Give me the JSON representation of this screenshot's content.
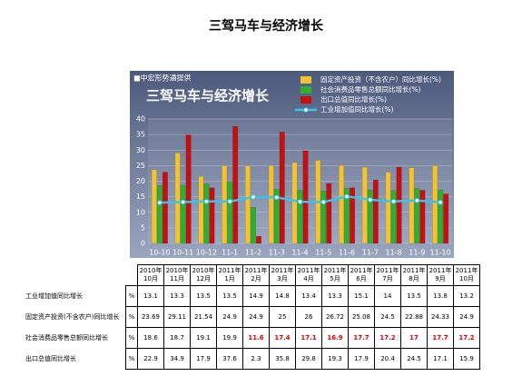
{
  "header": {
    "title": "三驾马车与经济增长"
  },
  "chart_data": {
    "type": "bar",
    "source": "■中宏形势通提供",
    "title": "三驾马车与经济增长",
    "categories": [
      "10-10",
      "10-11",
      "10-12",
      "11-1",
      "11-2",
      "11-3",
      "11-4",
      "11-5",
      "11-6",
      "11-7",
      "11-8",
      "11-9",
      "11-10"
    ],
    "series": [
      {
        "name": "固定资产投资（不含农户）同比增长(%)",
        "color": "#f2c230",
        "type": "bar",
        "values": [
          23.69,
          29.11,
          21.54,
          24.9,
          24.9,
          25,
          26,
          26.72,
          25.08,
          24.5,
          22.88,
          24.33,
          24.9
        ]
      },
      {
        "name": "社会消费品零售总额同比增长(%)",
        "color": "#2fae2f",
        "type": "bar",
        "values": [
          18.6,
          18.7,
          19.1,
          19.9,
          11.6,
          17.4,
          17.1,
          16.9,
          17.7,
          17.2,
          17,
          17.7,
          17.2
        ]
      },
      {
        "name": "出口总值同比增长(%)",
        "color": "#c41010",
        "type": "bar",
        "values": [
          22.9,
          34.9,
          17.9,
          37.6,
          2.3,
          35.8,
          29.8,
          19.3,
          17.9,
          20.4,
          24.5,
          17.1,
          15.9
        ]
      },
      {
        "name": "工业增加值同比增长(%)",
        "color": "#3cc4e6",
        "type": "line",
        "values": [
          13.1,
          13.3,
          13.5,
          13.5,
          14.9,
          14.8,
          13.4,
          13.3,
          15.1,
          14,
          13.5,
          13.8,
          13.2
        ]
      }
    ],
    "ylim": [
      0,
      40
    ],
    "yticks": [
      0,
      5,
      10,
      15,
      20,
      25,
      30,
      35,
      40
    ],
    "grid": true
  },
  "table": {
    "columns": [
      [
        "2010年",
        "10月"
      ],
      [
        "2010年",
        "11月"
      ],
      [
        "2010年",
        "12月"
      ],
      [
        "2011年",
        "1月"
      ],
      [
        "2011年",
        "2月"
      ],
      [
        "2011年",
        "3月"
      ],
      [
        "2011年",
        "4月"
      ],
      [
        "2011年",
        "5月"
      ],
      [
        "2011年",
        "6月"
      ],
      [
        "2011年",
        "7月"
      ],
      [
        "2011年",
        "8月"
      ],
      [
        "2011年",
        "9月"
      ],
      [
        "2011年",
        "10月"
      ]
    ],
    "rows": [
      {
        "label": "工业增加值同比增长",
        "unit": "%",
        "values": [
          13.1,
          13.3,
          13.5,
          13.5,
          14.9,
          14.8,
          13.4,
          13.3,
          15.1,
          14,
          13.5,
          13.8,
          13.2
        ]
      },
      {
        "label": "固定资产投资(不含农户)同比增长",
        "unit": "%",
        "values": [
          23.69,
          29.11,
          21.54,
          24.9,
          24.9,
          25,
          26,
          26.72,
          25.08,
          24.5,
          22.88,
          24.33,
          24.9
        ]
      },
      {
        "label": "社会消费品零售总额同比增长",
        "unit": "%",
        "values": [
          18.6,
          18.7,
          19.1,
          19.9,
          11.6,
          17.4,
          17.1,
          16.9,
          17.7,
          17.2,
          17,
          17.7,
          17.2
        ]
      },
      {
        "label": "出口总值同比增长",
        "unit": "%",
        "values": [
          22.9,
          34.9,
          17.9,
          37.6,
          2.3,
          35.8,
          29.8,
          19.3,
          17.9,
          20.4,
          24.5,
          17.1,
          15.9
        ]
      }
    ]
  }
}
